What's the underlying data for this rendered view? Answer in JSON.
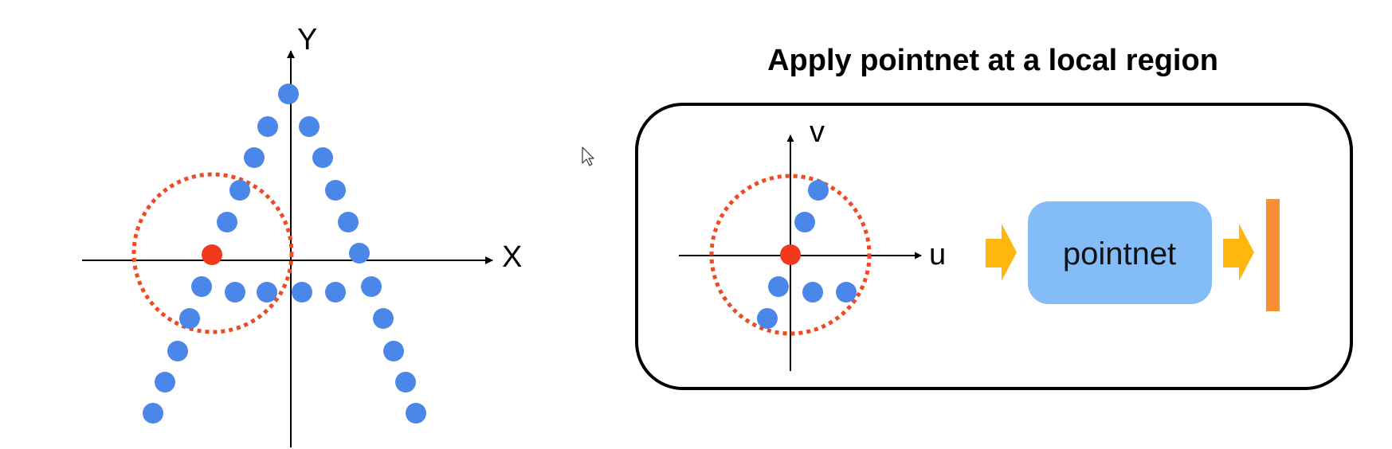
{
  "left_plot": {
    "x_axis_label": "X",
    "y_axis_label": "Y"
  },
  "right_panel": {
    "title": "Apply pointnet at a local region",
    "u_axis_label": "u",
    "v_axis_label": "v",
    "network_label": "pointnet"
  },
  "colors": {
    "point": "#4a87e8",
    "center_point": "#f2391b",
    "region_circle": "#ee4a24",
    "arrow": "#ffb70f",
    "network_box": "#84bcf8",
    "feature_bar": "#f88f35",
    "axis": "#000000"
  },
  "icons": {
    "cursor": "mouse-pointer-icon"
  }
}
